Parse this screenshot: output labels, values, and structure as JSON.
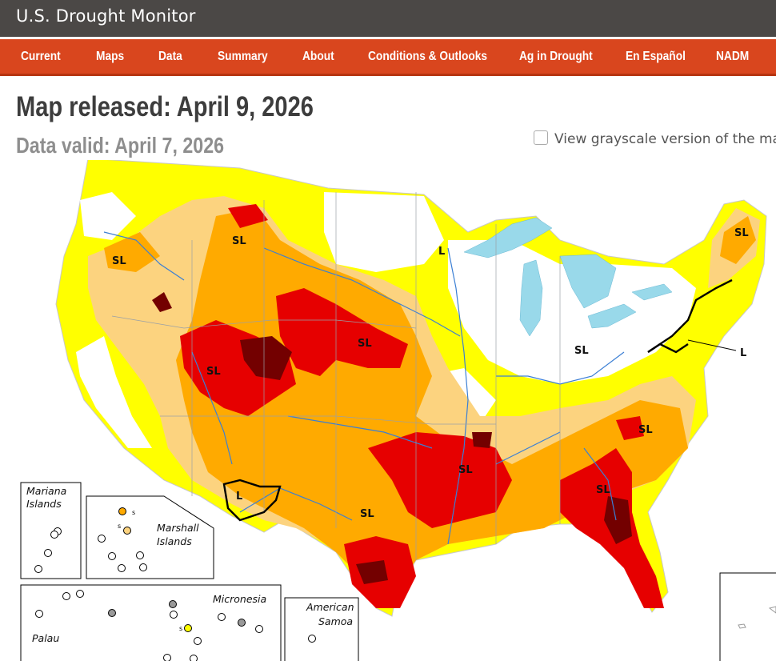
{
  "header": {
    "title": "U.S. Drought Monitor"
  },
  "nav": {
    "items": [
      {
        "label": "Current"
      },
      {
        "label": "Maps"
      },
      {
        "label": "Data"
      },
      {
        "label": "Summary"
      },
      {
        "label": "About"
      },
      {
        "label": "Conditions & Outlooks"
      },
      {
        "label": "Ag in Drought"
      },
      {
        "label": "En Español"
      },
      {
        "label": "NADM"
      }
    ]
  },
  "main": {
    "released": "Map released: April 9, 2026",
    "valid": "Data valid: April 7, 2026",
    "grayscale_label": "View grayscale version of the map",
    "grayscale_checked": false
  },
  "map": {
    "impact_labels": {
      "sl_nw": "SL",
      "sl_mt": "SL",
      "sl_mw": "L",
      "sl_ne": "SL",
      "sl_sw": "SL",
      "sl_plains": "SL",
      "sl_oh": "SL",
      "l_nj": "L",
      "sl_nc": "SL",
      "sl_ar": "SL",
      "sl_ga": "SL",
      "l_nm": "L",
      "sl_tx": "SL"
    },
    "insets": {
      "mariana": "Mariana\nIslands",
      "mariana_l1": "Mariana",
      "mariana_l2": "Islands",
      "marshall_l1": "Marshall",
      "marshall_l2": "Islands",
      "micronesia": "Micronesia",
      "palau": "Palau",
      "samoa_l1": "American",
      "samoa_l2": "Samoa",
      "s_marker": "s"
    },
    "colors": {
      "D0": "#ffff00",
      "D1": "#fcd37f",
      "D2": "#ffaa00",
      "D3": "#e60000",
      "D4": "#730000",
      "water": "#99d9ea",
      "rivers": "#3b7fd4"
    }
  }
}
